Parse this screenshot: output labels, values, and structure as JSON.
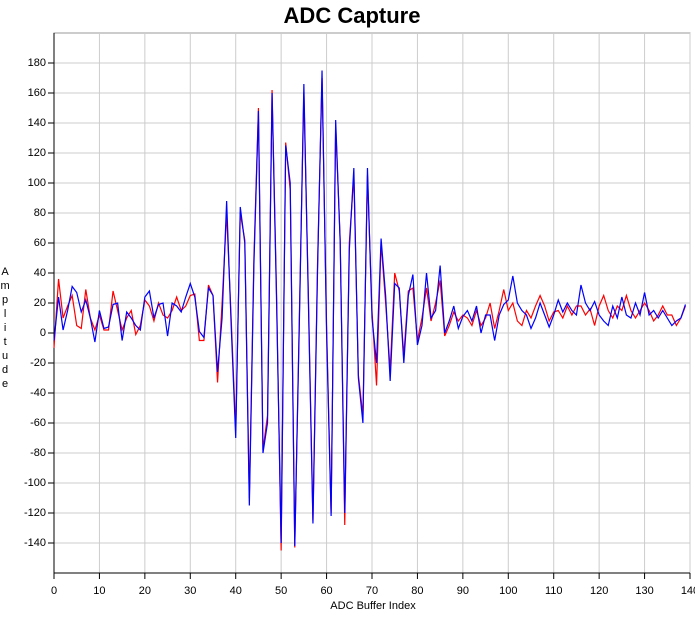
{
  "chart_data": {
    "type": "line",
    "title": "ADC Capture",
    "xlabel": "ADC Buffer Index",
    "ylabel": "Amplitude",
    "x": [
      0,
      1,
      2,
      3,
      4,
      5,
      6,
      7,
      8,
      9,
      10,
      11,
      12,
      13,
      14,
      15,
      16,
      17,
      18,
      19,
      20,
      21,
      22,
      23,
      24,
      25,
      26,
      27,
      28,
      29,
      30,
      31,
      32,
      33,
      34,
      35,
      36,
      37,
      38,
      39,
      40,
      41,
      42,
      43,
      44,
      45,
      46,
      47,
      48,
      49,
      50,
      51,
      52,
      53,
      54,
      55,
      56,
      57,
      58,
      59,
      60,
      61,
      62,
      63,
      64,
      65,
      66,
      67,
      68,
      69,
      70,
      71,
      72,
      73,
      74,
      75,
      76,
      77,
      78,
      79,
      80,
      81,
      82,
      83,
      84,
      85,
      86,
      87,
      88,
      89,
      90,
      91,
      92,
      93,
      94,
      95,
      96,
      97,
      98,
      99,
      100,
      101,
      102,
      103,
      104,
      105,
      106,
      107,
      108,
      109,
      110,
      111,
      112,
      113,
      114,
      115,
      116,
      117,
      118,
      119,
      120,
      121,
      122,
      123,
      124,
      125,
      126,
      127,
      128,
      129,
      130,
      131,
      132,
      133,
      134,
      135,
      136,
      137,
      138,
      139
    ],
    "series": [
      {
        "color": "#ff0000",
        "values": [
          -10,
          36,
          10,
          18,
          25,
          5,
          3,
          29,
          10,
          2,
          12,
          2,
          2,
          28,
          15,
          2,
          10,
          15,
          -1,
          5,
          22,
          18,
          8,
          20,
          12,
          10,
          15,
          24,
          15,
          18,
          25,
          26,
          -5,
          -5,
          32,
          25,
          -33,
          20,
          80,
          10,
          -65,
          80,
          62,
          -110,
          50,
          150,
          -78,
          -55,
          162,
          25,
          -145,
          127,
          95,
          -143,
          10,
          160,
          25,
          -125,
          45,
          170,
          5,
          -120,
          138,
          62,
          -128,
          60,
          105,
          -28,
          -55,
          105,
          15,
          -35,
          60,
          20,
          -25,
          40,
          28,
          -15,
          28,
          30,
          -5,
          10,
          30,
          8,
          20,
          35,
          -2,
          5,
          14,
          8,
          12,
          10,
          5,
          15,
          5,
          10,
          20,
          3,
          15,
          29,
          15,
          20,
          8,
          5,
          15,
          10,
          18,
          25,
          18,
          8,
          14,
          15,
          10,
          18,
          12,
          18,
          18,
          12,
          16,
          5,
          18,
          25,
          15,
          10,
          18,
          15,
          25,
          15,
          10,
          15,
          20,
          15,
          8,
          12,
          18,
          12,
          12,
          5,
          10,
          18
        ]
      },
      {
        "color": "#0000ff",
        "values": [
          -5,
          24,
          2,
          15,
          31,
          27,
          14,
          22,
          10,
          -6,
          15,
          3,
          4,
          19,
          20,
          -5,
          14,
          10,
          5,
          2,
          24,
          28,
          10,
          19,
          20,
          -2,
          20,
          18,
          14,
          24,
          33,
          24,
          1,
          -3,
          30,
          25,
          -26,
          10,
          88,
          5,
          -70,
          84,
          60,
          -115,
          45,
          148,
          -80,
          -60,
          160,
          20,
          -140,
          125,
          100,
          -142,
          5,
          166,
          20,
          -127,
          40,
          175,
          0,
          -122,
          142,
          60,
          -120,
          55,
          110,
          -30,
          -60,
          110,
          10,
          -20,
          63,
          25,
          -32,
          33,
          30,
          -20,
          25,
          39,
          -8,
          5,
          40,
          10,
          15,
          45,
          0,
          8,
          18,
          3,
          11,
          15,
          8,
          18,
          0,
          12,
          12,
          -5,
          12,
          19,
          22,
          38,
          20,
          15,
          12,
          3,
          10,
          20,
          12,
          4,
          12,
          22,
          14,
          20,
          15,
          12,
          32,
          20,
          15,
          21,
          12,
          8,
          5,
          18,
          10,
          24,
          12,
          10,
          20,
          12,
          27,
          12,
          15,
          10,
          15,
          10,
          5,
          8,
          10,
          19
        ]
      }
    ],
    "xlim": [
      0,
      140
    ],
    "xticks": [
      0,
      10,
      20,
      30,
      40,
      50,
      60,
      70,
      80,
      90,
      100,
      110,
      120,
      130,
      140
    ],
    "ylim": [
      -160,
      200
    ],
    "yticks": [
      -140,
      -120,
      -100,
      -80,
      -60,
      -40,
      -20,
      0,
      20,
      40,
      60,
      80,
      100,
      120,
      140,
      160,
      180
    ],
    "grid": true
  }
}
